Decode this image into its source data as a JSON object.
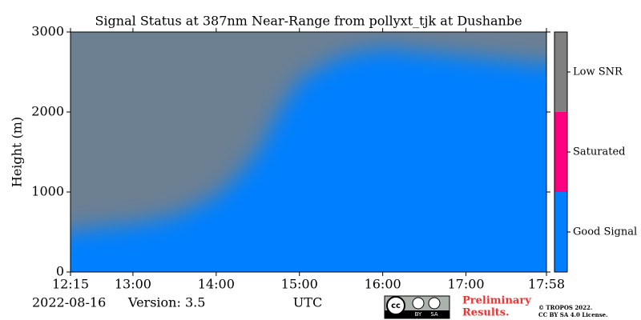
{
  "chart_data": {
    "type": "status",
    "title": "Signal Status at 387nm Near-Range from pollyxt_tjk at Dushanbe",
    "y_label": "Height (m)",
    "x_label": "UTC",
    "xlim": [
      12.25,
      17.967
    ],
    "xticks": [
      {
        "value": 12.25,
        "label": "12:15"
      },
      {
        "value": 13,
        "label": "13:00"
      },
      {
        "value": 14,
        "label": "14:00"
      },
      {
        "value": 15,
        "label": "15:00"
      },
      {
        "value": 16,
        "label": "16:00"
      },
      {
        "value": 17,
        "label": "17:00"
      },
      {
        "value": 17.967,
        "label": "17:58"
      }
    ],
    "ylim": [
      0,
      3000
    ],
    "yticks": [
      0,
      1000,
      2000,
      3000
    ],
    "background_color": "#0080ff",
    "low_snr_color": "#808080",
    "low_snr_boundary": {
      "x": [
        12.25,
        12.5,
        13,
        13.5,
        14,
        14.25,
        14.5,
        14.75,
        15,
        15.5,
        16,
        16.5,
        17,
        17.5,
        17.967
      ],
      "values": [
        500,
        550,
        600,
        700,
        950,
        1200,
        1500,
        2000,
        2400,
        2700,
        2800,
        2750,
        2700,
        2650,
        2600
      ]
    },
    "colorbar": {
      "labels": [
        "Good Signal",
        "Saturated",
        "Low SNR"
      ],
      "colors": [
        "#0080ff",
        "#ff0080",
        "#808080"
      ]
    },
    "date": "2022-08-16",
    "version": "Version: 3.5",
    "badge": {
      "cc": "cc",
      "by": "BY",
      "sa": "SA"
    },
    "preliminary": [
      "Preliminary",
      "Results."
    ],
    "copyright": [
      "© TROPOS 2022.",
      "CC BY SA 4.0 License."
    ]
  }
}
